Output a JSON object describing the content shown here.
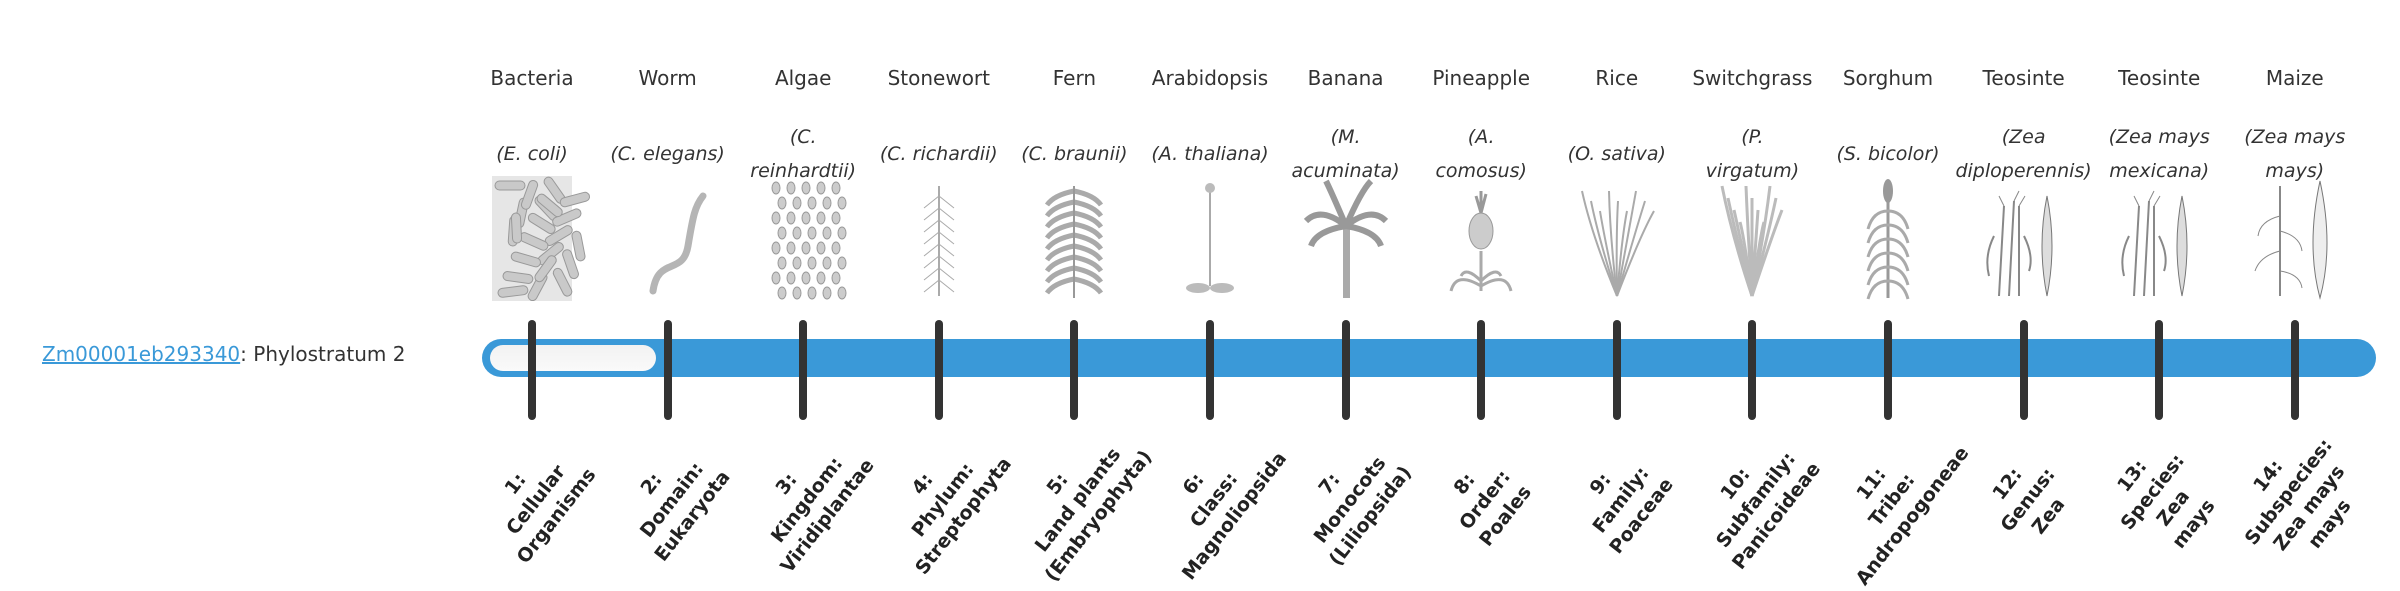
{
  "gene": {
    "id": "Zm00001eb293340",
    "suffix": ": Phylostratum 2",
    "phylostratum": 2,
    "max_phylostratum": 14
  },
  "colors": {
    "bar": "#3a99d8",
    "empty": "#f4f4f4",
    "tick": "#333333"
  },
  "strata": [
    {
      "common": "Bacteria",
      "species": "(E. coli)",
      "icon": "bacteria-rods",
      "rank": "1:\nCellular\nOrganisms"
    },
    {
      "common": "Worm",
      "species": "(C. elegans)",
      "icon": "worm",
      "rank": "2:\nDomain:\nEukaryota"
    },
    {
      "common": "Algae",
      "species": "(C.\nreinhardtii)",
      "icon": "algae-cells",
      "rank": "3:\nKingdom:\nViridiplantae"
    },
    {
      "common": "Stonewort",
      "species": "(C. richardii)",
      "icon": "stonewort",
      "rank": "4:\nPhylum:\nStreptophyta"
    },
    {
      "common": "Fern",
      "species": "(C. braunii)",
      "icon": "fern",
      "rank": "5:\nLand plants\n(Embryophyta)"
    },
    {
      "common": "Arabidopsis",
      "species": "(A. thaliana)",
      "icon": "arabidopsis",
      "rank": "6:\nClass:\nMagnoliopsida"
    },
    {
      "common": "Banana",
      "species": "(M.\nacuminata)",
      "icon": "banana-tree",
      "rank": "7:\nMonocots\n(Liliopsida)"
    },
    {
      "common": "Pineapple",
      "species": "(A.\ncomosus)",
      "icon": "pineapple",
      "rank": "8:\nOrder:\nPoales"
    },
    {
      "common": "Rice",
      "species": "(O. sativa)",
      "icon": "rice",
      "rank": "9:\nFamily:\nPoaceae"
    },
    {
      "common": "Switchgrass",
      "species": "(P.\nvirgatum)",
      "icon": "switchgrass",
      "rank": "10:\nSubfamily:\nPanicoideae"
    },
    {
      "common": "Sorghum",
      "species": "(S. bicolor)",
      "icon": "sorghum",
      "rank": "11:\nTribe:\nAndropogoneae"
    },
    {
      "common": "Teosinte",
      "species": "(Zea\ndiploperennis)",
      "icon": "teosinte",
      "rank": "12:\nGenus:\nZea"
    },
    {
      "common": "Teosinte",
      "species": "(Zea mays\nmexicana)",
      "icon": "teosinte",
      "rank": "13:\nSpecies:\nZea\nmays"
    },
    {
      "common": "Maize",
      "species": "(Zea mays\nmays)",
      "icon": "maize",
      "rank": "14:\nSubspecies:\nZea mays\nmays"
    }
  ]
}
